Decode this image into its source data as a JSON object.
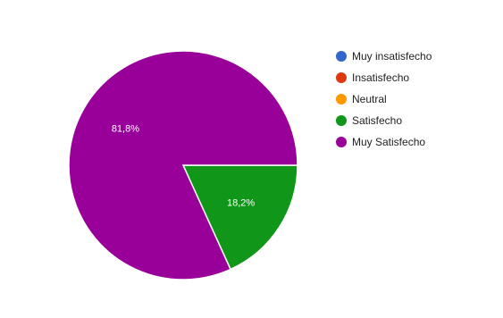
{
  "chart_data": {
    "type": "pie",
    "legend_position": "right",
    "series": [
      {
        "name": "Muy insatisfecho",
        "value": 0,
        "percent_label": "",
        "color": "#3366cc"
      },
      {
        "name": "Insatisfecho",
        "value": 0,
        "percent_label": "",
        "color": "#dc3912"
      },
      {
        "name": "Neutral",
        "value": 0,
        "percent_label": "",
        "color": "#ff9900"
      },
      {
        "name": "Satisfecho",
        "value": 18.2,
        "percent_label": "18,2%",
        "color": "#109618"
      },
      {
        "name": "Muy Satisfecho",
        "value": 81.8,
        "percent_label": "81,8%",
        "color": "#990099"
      }
    ]
  }
}
